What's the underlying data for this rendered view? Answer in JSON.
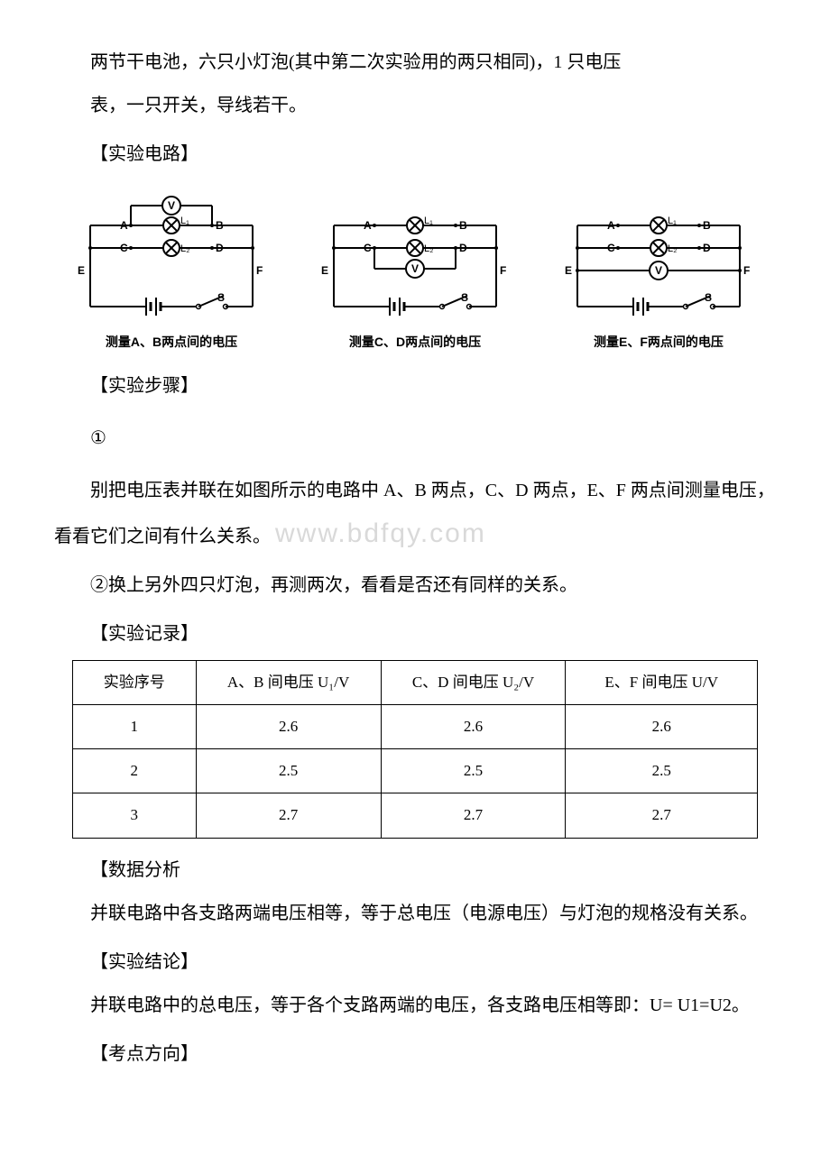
{
  "intro_p1": "两节干电池，六只小灯泡(其中第二次实验用的两只相同)，1 只电压",
  "intro_p2": "表，一只开关，导线若干。",
  "sec_circuit": "【实验电路】",
  "sec_steps": "【实验步骤】",
  "sec_record": "【实验记录】",
  "sec_analysis": "【数据分析",
  "sec_conclusion": "【实验结论】",
  "sec_direction": "【考点方向】",
  "step1_num": "①",
  "step1_body": "别把电压表并联在如图所示的电路中 A、B 两点，C、D 两点，E、F 两点间测量电压，看看它们之间有什么关系。",
  "step2": "②换上另外四只灯泡，再测两次，看看是否还有同样的关系。",
  "watermark_text": "www.bdfqy.com",
  "analysis_body": "并联电路中各支路两端电压相等，等于总电压（电源电压）与灯泡的规格没有关系。",
  "conclusion_body": "并联电路中的总电压，等于各个支路两端的电压，各支路电压相等即：U= U1=U2。",
  "diagrams": [
    {
      "caption": "测量A、B两点间的电压",
      "voltmeter_pos": "top"
    },
    {
      "caption": "测量C、D两点间的电压",
      "voltmeter_pos": "mid"
    },
    {
      "caption": "测量E、F两点间的电压",
      "voltmeter_pos": "outer"
    }
  ],
  "circuit_style": {
    "stroke": "#000000",
    "stroke_width": 2,
    "font_family": "SimHei, sans-serif",
    "label_fontsize": 12,
    "bg": "#ffffff"
  },
  "table": {
    "columns": [
      "实验序号",
      "A、B 间电压 U₁/V",
      "C、D 间电压 U₂/V",
      "E、F 间电压 U/V"
    ],
    "rows": [
      [
        "1",
        "2.6",
        "2.6",
        "2.6"
      ],
      [
        "2",
        "2.5",
        "2.5",
        "2.5"
      ],
      [
        "3",
        "2.7",
        "2.7",
        "2.7"
      ]
    ],
    "border_color": "#000000",
    "cell_fontsize": 17,
    "col_widths_pct": [
      18,
      27,
      27,
      28
    ]
  }
}
